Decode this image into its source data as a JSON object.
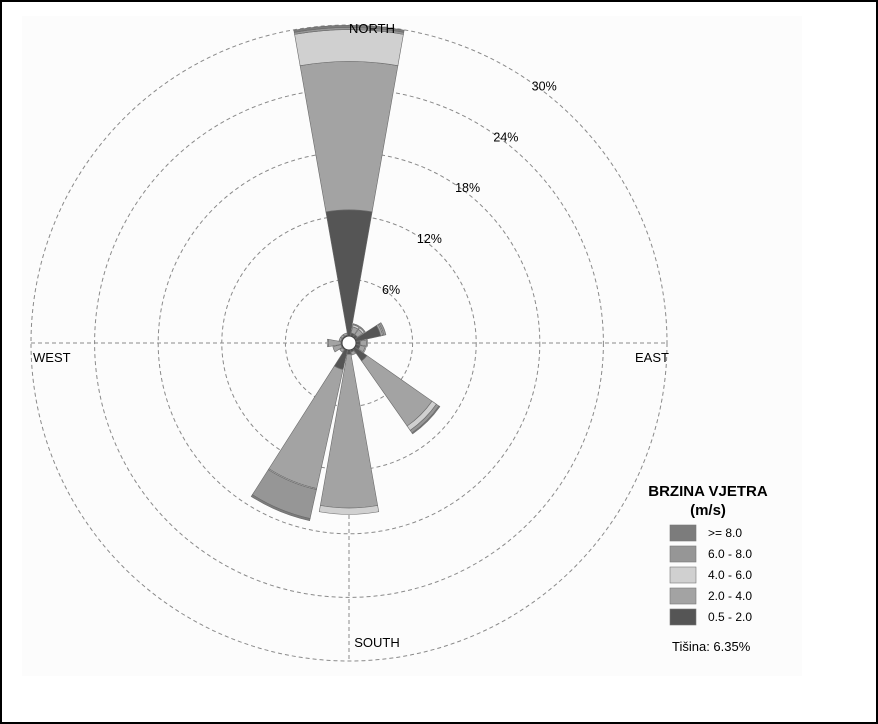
{
  "chart_data": {
    "type": "wind-rose",
    "directions": [
      "N",
      "NNE",
      "NE",
      "ENE",
      "E",
      "ESE",
      "SE",
      "SSE",
      "S",
      "SSW",
      "SW",
      "WSW",
      "W",
      "WNW",
      "NW",
      "NNW"
    ],
    "direction_labels": {
      "north": "NORTH",
      "east": "EAST",
      "south": "SOUTH",
      "west": "WEST"
    },
    "ring_values": [
      6,
      12,
      18,
      24,
      30
    ],
    "ring_labels": [
      "6%",
      "12%",
      "18%",
      "24%",
      "30%"
    ],
    "max_percent": 30,
    "legend_title": [
      "BRZINA VJETRA",
      "(m/s)"
    ],
    "series": [
      {
        "name": "0.5 - 2.0",
        "color": "#555555",
        "values": [
          12.0,
          0.4,
          0.4,
          2.5,
          0.5,
          0.5,
          1.5,
          0.3,
          0.5,
          2.0,
          0.2,
          0.2,
          0.2,
          0.2,
          0.2,
          0.2
        ]
      },
      {
        "name": "2.0 - 4.0",
        "color": "#a3a3a3",
        "values": [
          14.0,
          0.6,
          0.6,
          0.2,
          0.6,
          0.5,
          7.5,
          0.3,
          14.5,
          11.5,
          0.3,
          0.8,
          1.2,
          0.2,
          0.2,
          0.2
        ]
      },
      {
        "name": "4.0 - 6.0",
        "color": "#d0d0d0",
        "values": [
          3.0,
          0.2,
          0.2,
          0.1,
          0.1,
          0.1,
          0.5,
          0.0,
          0.6,
          0.1,
          0.0,
          0.0,
          0.1,
          0.0,
          0.0,
          0.0
        ]
      },
      {
        "name": "6.0 - 8.0",
        "color": "#969696",
        "values": [
          0.2,
          0.1,
          0.1,
          0.2,
          0.0,
          0.0,
          0.3,
          0.0,
          0.0,
          2.8,
          0.0,
          0.0,
          0.0,
          0.0,
          0.0,
          0.0
        ]
      },
      {
        "name": ">= 8.0",
        "color": "#7c7c7c",
        "values": [
          0.2,
          0.0,
          0.0,
          0.0,
          0.0,
          0.0,
          0.1,
          0.0,
          0.0,
          0.2,
          0.0,
          0.0,
          0.0,
          0.0,
          0.0,
          0.0
        ]
      }
    ],
    "legend_order": [
      ">= 8.0",
      "6.0 - 8.0",
      "4.0 - 6.0",
      "2.0 - 4.0",
      "0.5 - 2.0"
    ],
    "calm": "Tišina: 6.35%"
  }
}
